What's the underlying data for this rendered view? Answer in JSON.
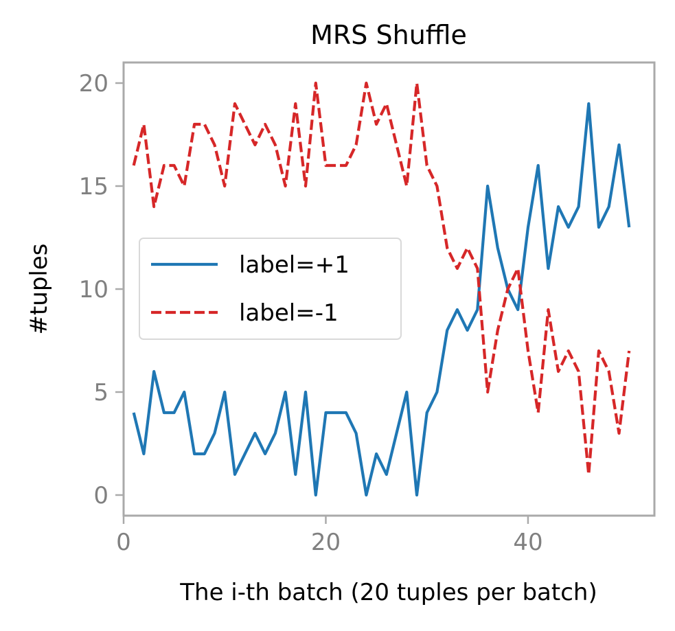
{
  "chart_data": {
    "type": "line",
    "title": "MRS Shuffle",
    "xlabel": "The i-th batch (20 tuples per batch)",
    "ylabel": "#tuples",
    "xlim": [
      0,
      52.5
    ],
    "ylim": [
      -1,
      21
    ],
    "xticks": [
      0,
      20,
      40
    ],
    "yticks": [
      0,
      5,
      10,
      15,
      20
    ],
    "grid": false,
    "legend_position": "center-left",
    "x": [
      1,
      2,
      3,
      4,
      5,
      6,
      7,
      8,
      9,
      10,
      11,
      12,
      13,
      14,
      15,
      16,
      17,
      18,
      19,
      20,
      21,
      22,
      23,
      24,
      25,
      26,
      27,
      28,
      29,
      30,
      31,
      32,
      33,
      34,
      35,
      36,
      37,
      38,
      39,
      40,
      41,
      42,
      43,
      44,
      45,
      46,
      47,
      48,
      49,
      50
    ],
    "series": [
      {
        "name": "label=+1",
        "color": "#1f77b4",
        "style": "solid",
        "values": [
          4,
          2,
          6,
          4,
          4,
          5,
          2,
          2,
          3,
          5,
          1,
          2,
          3,
          2,
          3,
          5,
          1,
          5,
          0,
          4,
          4,
          4,
          3,
          0,
          2,
          1,
          3,
          5,
          0,
          4,
          5,
          8,
          9,
          8,
          9,
          15,
          12,
          10,
          9,
          13,
          16,
          11,
          14,
          13,
          14,
          19,
          13,
          14,
          17,
          13
        ]
      },
      {
        "name": "label=-1",
        "color": "#d62728",
        "style": "dashed",
        "values": [
          16,
          18,
          14,
          16,
          16,
          15,
          18,
          18,
          17,
          15,
          19,
          18,
          17,
          18,
          17,
          15,
          19,
          15,
          20,
          16,
          16,
          16,
          17,
          20,
          18,
          19,
          17,
          15,
          20,
          16,
          15,
          12,
          11,
          12,
          11,
          5,
          8,
          10,
          11,
          7,
          4,
          9,
          6,
          7,
          6,
          1,
          7,
          6,
          3,
          7
        ]
      }
    ]
  }
}
